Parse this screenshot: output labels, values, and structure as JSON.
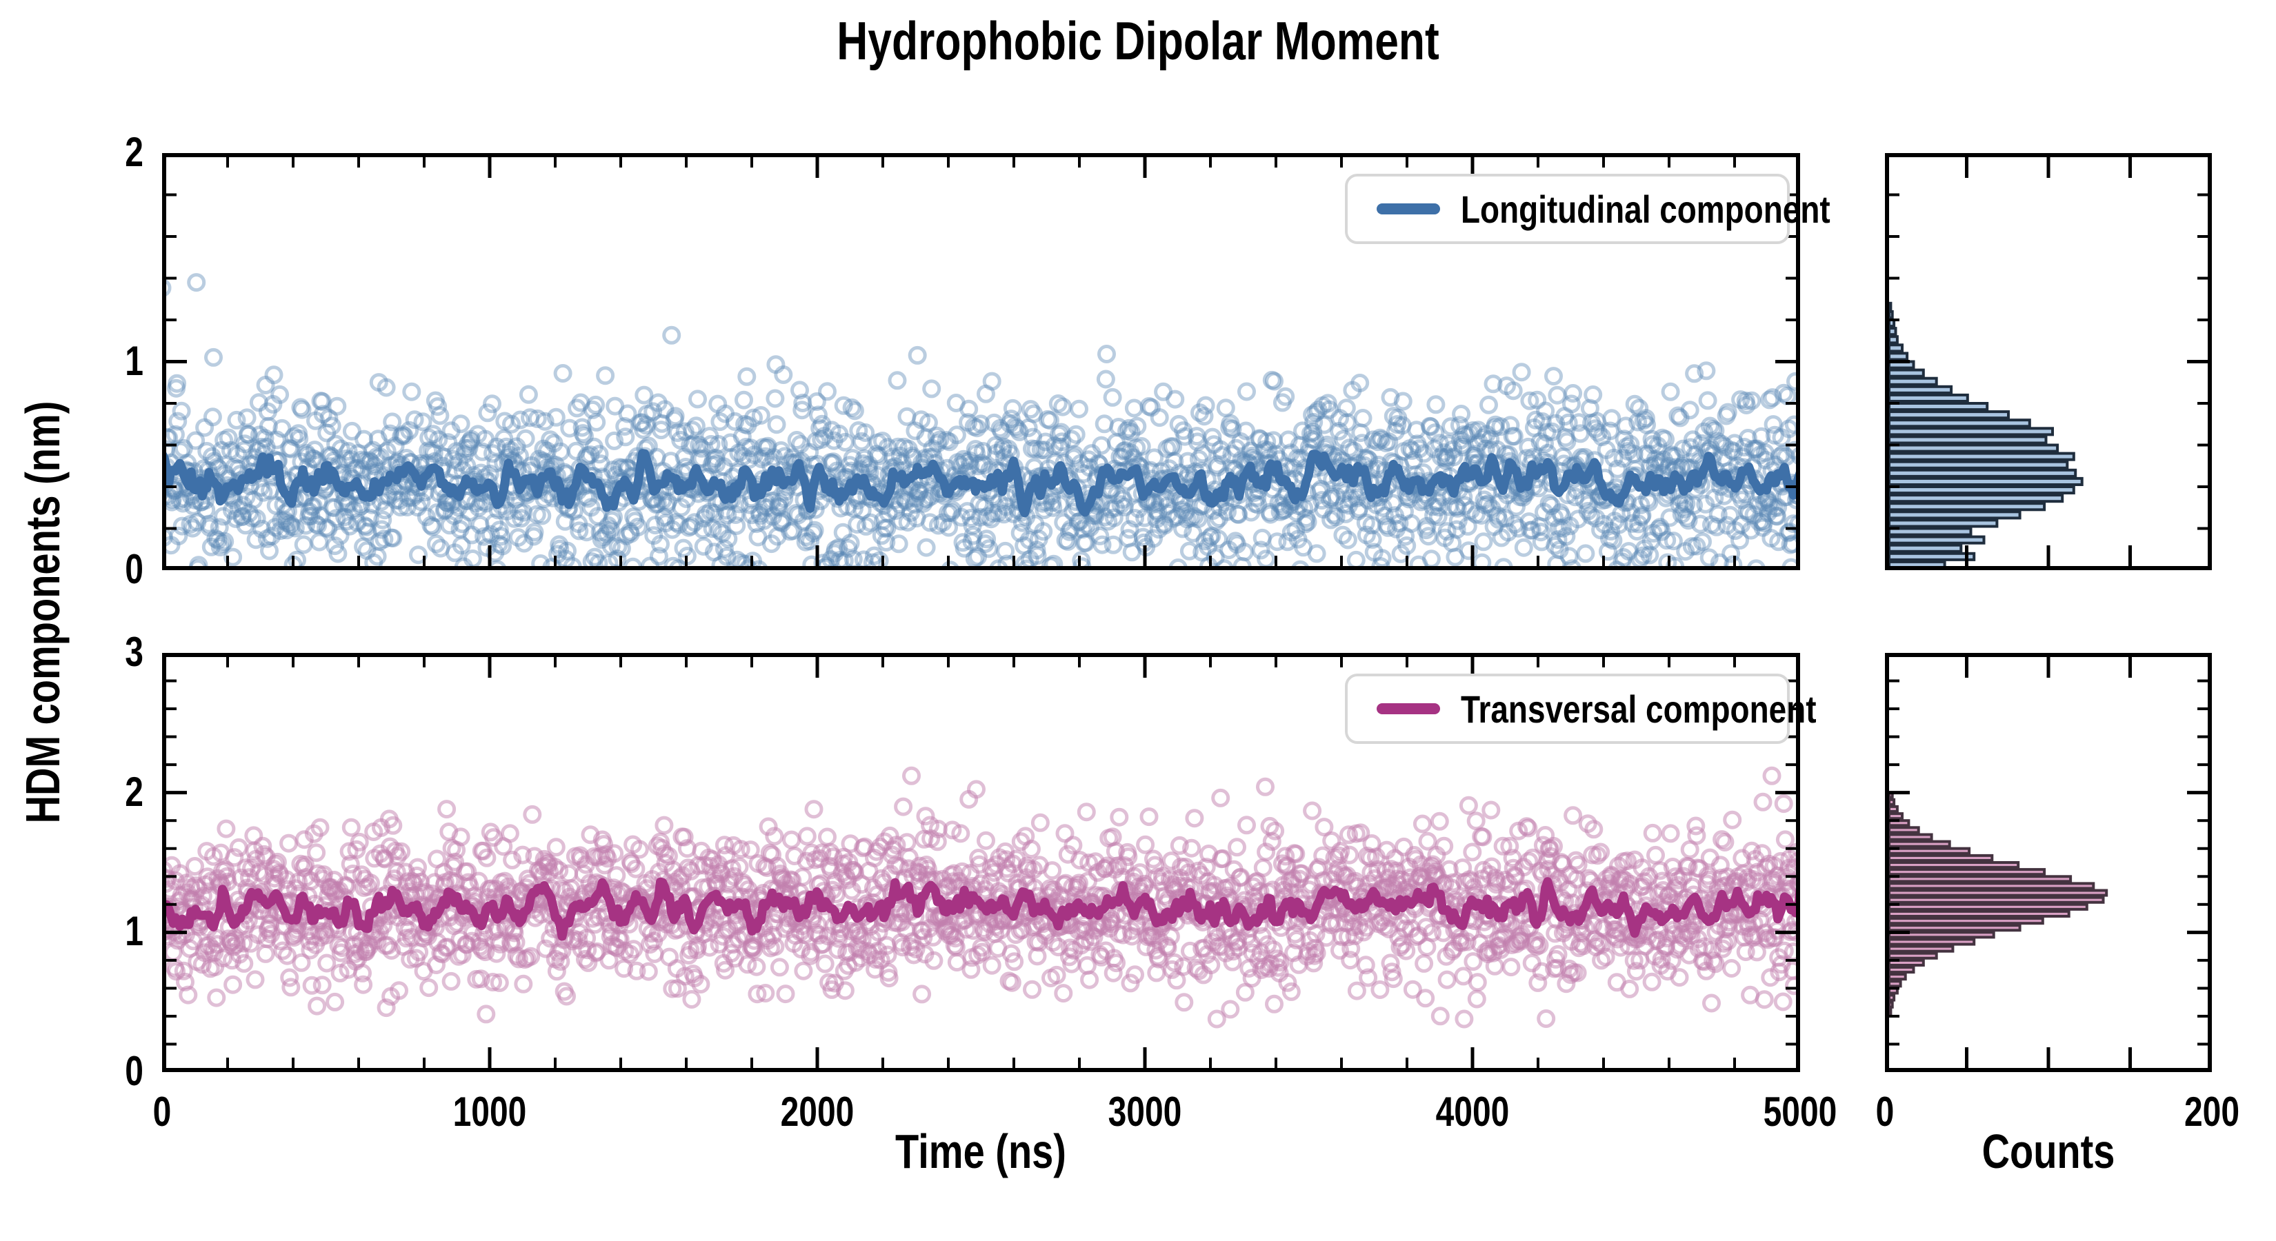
{
  "chart_data": {
    "type": "scatter",
    "title": "Hydrophobic Dipolar Moment",
    "xlabel": "Time (ns)",
    "ylabel": "HDM components (nm)",
    "hist_xlabel": "Counts",
    "x_range": [
      0,
      5000
    ],
    "x_major_ticks": [
      0,
      1000,
      2000,
      3000,
      4000,
      5000
    ],
    "x_minor_step": 200,
    "hist_range": [
      0,
      200
    ],
    "hist_labeled_ticks": [
      0,
      200
    ],
    "hist_unlabeled_ticks": [
      50,
      100,
      150
    ],
    "legend_position": "upper right",
    "grid": false,
    "panels": [
      {
        "name": "longitudinal",
        "legend": "Longitudinal component",
        "ylim": [
          0,
          2
        ],
        "y_major_ticks": [
          0,
          1,
          2
        ],
        "y_minor_step": 0.2,
        "line_color": "#3e70a8",
        "marker_color": "#5b87b5",
        "marker_alpha": 0.42,
        "hist_fill": "#a9c4e0",
        "hist_edge": "#1f2d3d",
        "scatter": {
          "n": 2200,
          "mean": 0.42,
          "std": 0.2,
          "reflect": true,
          "outlier_frac": 0.012,
          "outlier_scale": 2.0,
          "y_clip": [
            0,
            1.38
          ],
          "seed": 7
        },
        "line": {
          "window": 15,
          "approx_mean": 0.42
        },
        "histogram": {
          "bin_start": 0.0,
          "bin_width": 0.04,
          "counts": [
            34,
            52,
            44,
            58,
            50,
            66,
            80,
            95,
            106,
            113,
            118,
            114,
            109,
            113,
            103,
            96,
            100,
            86,
            73,
            60,
            48,
            38,
            29,
            21,
            15,
            11,
            8,
            5,
            4,
            3,
            2,
            1
          ]
        }
      },
      {
        "name": "transversal",
        "legend": "Transversal component",
        "ylim": [
          0,
          3
        ],
        "y_major_ticks": [
          0,
          1,
          2,
          3
        ],
        "y_minor_step": 0.2,
        "line_color": "#a63383",
        "marker_color": "#c27fae",
        "marker_alpha": 0.5,
        "hist_fill": "#d9a0c4",
        "hist_edge": "#443340",
        "scatter": {
          "n": 2200,
          "mean": 1.17,
          "std": 0.27,
          "reflect": false,
          "outlier_frac": 0.01,
          "outlier_scale": 1.6,
          "y_clip": [
            0.38,
            2.12
          ],
          "seed": 99
        },
        "line": {
          "window": 15,
          "approx_mean": 1.17
        },
        "histogram": {
          "bin_start": 0.4,
          "bin_width": 0.05,
          "counts": [
            1,
            2,
            3,
            5,
            7,
            10,
            15,
            21,
            29,
            39,
            52,
            64,
            80,
            94,
            110,
            121,
            131,
            133,
            125,
            111,
            95,
            79,
            63,
            49,
            37,
            26,
            18,
            12,
            8,
            5,
            3,
            2
          ]
        }
      }
    ]
  }
}
